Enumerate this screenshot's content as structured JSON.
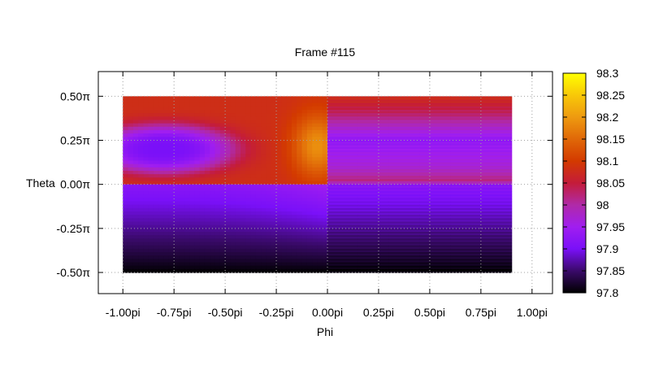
{
  "chart_data": {
    "type": "heatmap",
    "title": "Frame #115",
    "xlabel": "Phi",
    "ylabel": "Theta",
    "x_range": [
      -1.0,
      0.9
    ],
    "y_range": [
      -0.5,
      0.5
    ],
    "xlim": [
      -1.12,
      1.1
    ],
    "ylim": [
      -0.62,
      0.64
    ],
    "x_ticks": [
      {
        "value": -1.0,
        "label": "-1.00pi"
      },
      {
        "value": -0.75,
        "label": "-0.75pi"
      },
      {
        "value": -0.5,
        "label": "-0.50pi"
      },
      {
        "value": -0.25,
        "label": "-0.25pi"
      },
      {
        "value": 0.0,
        "label": "0.00pi"
      },
      {
        "value": 0.25,
        "label": "0.25pi"
      },
      {
        "value": 0.5,
        "label": "0.50pi"
      },
      {
        "value": 0.75,
        "label": "0.75pi"
      },
      {
        "value": 1.0,
        "label": "1.00pi"
      }
    ],
    "y_ticks": [
      {
        "value": 0.5,
        "label": "0.50π"
      },
      {
        "value": 0.25,
        "label": "0.25π"
      },
      {
        "value": 0.0,
        "label": "0.00π"
      },
      {
        "value": -0.25,
        "label": "-0.25π"
      },
      {
        "value": -0.5,
        "label": "-0.50π"
      }
    ],
    "colorbar": {
      "min": 97.8,
      "max": 98.3,
      "ticks": [
        {
          "value": 98.3,
          "label": "98.3"
        },
        {
          "value": 98.25,
          "label": "98.25"
        },
        {
          "value": 98.2,
          "label": "98.2"
        },
        {
          "value": 98.15,
          "label": "98.15"
        },
        {
          "value": 98.1,
          "label": "98.1"
        },
        {
          "value": 98.05,
          "label": "98.05"
        },
        {
          "value": 98.0,
          "label": "98"
        },
        {
          "value": 97.95,
          "label": "97.95"
        },
        {
          "value": 97.9,
          "label": "97.9"
        },
        {
          "value": 97.85,
          "label": "97.85"
        },
        {
          "value": 97.8,
          "label": "97.8"
        }
      ],
      "stops": [
        {
          "value": 97.8,
          "color": "#000000"
        },
        {
          "value": 97.85,
          "color": "#3a0a6a"
        },
        {
          "value": 97.9,
          "color": "#7a10f8"
        },
        {
          "value": 97.95,
          "color": "#a01ef0"
        },
        {
          "value": 98.0,
          "color": "#b02aa8"
        },
        {
          "value": 98.05,
          "color": "#c41c3a"
        },
        {
          "value": 98.1,
          "color": "#d33a00"
        },
        {
          "value": 98.15,
          "color": "#e06808"
        },
        {
          "value": 98.2,
          "color": "#ee9a10"
        },
        {
          "value": 98.25,
          "color": "#f8c808"
        },
        {
          "value": 98.3,
          "color": "#ffff00"
        }
      ]
    },
    "grid": true,
    "legend": "colorbar-right",
    "regions": [
      {
        "name": "phi<0, theta>0",
        "x": [
          -1.0,
          0.0
        ],
        "y": [
          0.0,
          0.5
        ],
        "background": 98.08,
        "low_center": {
          "x": -0.8,
          "y": 0.2,
          "value": 97.9,
          "spread_x": 0.35,
          "spread_y": 0.14
        },
        "high_center": {
          "x": -0.05,
          "y": 0.22,
          "value": 98.19,
          "spread_x": 0.12,
          "spread_y": 0.18
        }
      },
      {
        "name": "phi>0, theta>0",
        "x": [
          0.0,
          0.9
        ],
        "y": [
          0.0,
          0.5
        ],
        "profile": [
          {
            "y": 0.5,
            "value": 98.08
          },
          {
            "y": 0.4,
            "value": 98.03
          },
          {
            "y": 0.25,
            "value": 97.93
          },
          {
            "y": 0.1,
            "value": 97.97
          },
          {
            "y": 0.02,
            "value": 98.02
          },
          {
            "y": 0.0,
            "value": 97.96
          }
        ],
        "banded": true
      },
      {
        "name": "phi<0, theta<0",
        "x": [
          -1.0,
          0.0
        ],
        "y": [
          -0.5,
          0.0
        ],
        "top_value": 97.92,
        "bottom_value": 97.8,
        "right_edge_boost": 0.03
      },
      {
        "name": "phi>0, theta<0",
        "x": [
          0.0,
          0.9
        ],
        "y": [
          -0.5,
          0.0
        ],
        "top_value": 97.92,
        "bottom_value": 97.8,
        "banded": true
      }
    ]
  }
}
